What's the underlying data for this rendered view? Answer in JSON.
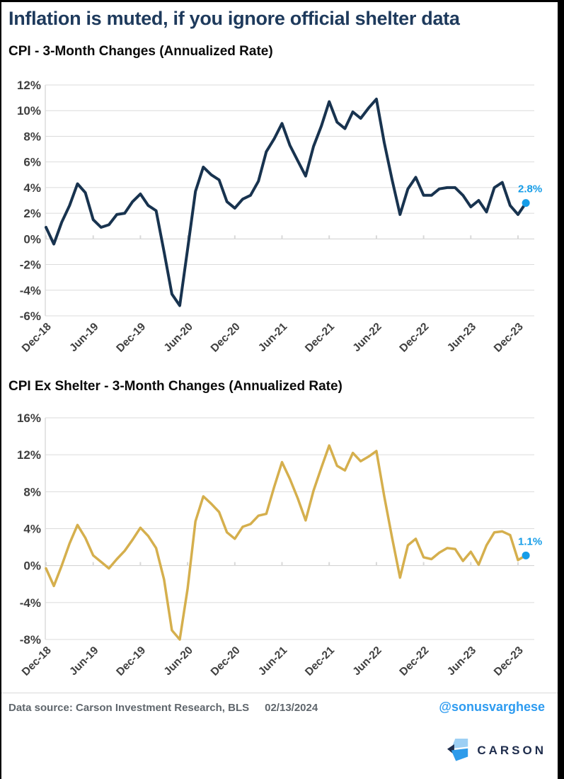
{
  "page": {
    "title": "Inflation is muted, if you ignore official shelter data",
    "footer": {
      "source": "Data source: Carson Investment Research, BLS",
      "date": "02/13/2024",
      "handle": "@sonusvarghese",
      "logo_text": "CARSON"
    },
    "colors": {
      "title_navy": "#1E3A5C",
      "accent_blue": "#169DE8",
      "handle_blue": "#2D9BF0",
      "navy_line": "#18334F",
      "gold_line": "#D5AF4D",
      "grid": "#DBDBDB",
      "zero_line": "#CFCFCF",
      "axis_text": "#3F3F3F",
      "footer_gray": "#5F666C",
      "logo_navy": "#1E2C4C",
      "logo_light_blue": "#9DCFF4",
      "logo_bright_blue": "#2E9BEA"
    }
  },
  "chart_data": [
    {
      "type": "line",
      "title": "CPI - 3-Month Changes (Annualized Rate)",
      "series_name": "CPI 3-month annualized change",
      "x": [
        "Dec-18",
        "Jan-19",
        "Feb-19",
        "Mar-19",
        "Apr-19",
        "May-19",
        "Jun-19",
        "Jul-19",
        "Aug-19",
        "Sep-19",
        "Oct-19",
        "Nov-19",
        "Dec-19",
        "Jan-20",
        "Feb-20",
        "Mar-20",
        "Apr-20",
        "May-20",
        "Jun-20",
        "Jul-20",
        "Aug-20",
        "Sep-20",
        "Oct-20",
        "Nov-20",
        "Dec-20",
        "Jan-21",
        "Feb-21",
        "Mar-21",
        "Apr-21",
        "May-21",
        "Jun-21",
        "Jul-21",
        "Aug-21",
        "Sep-21",
        "Oct-21",
        "Nov-21",
        "Dec-21",
        "Jan-22",
        "Feb-22",
        "Mar-22",
        "Apr-22",
        "May-22",
        "Jun-22",
        "Jul-22",
        "Aug-22",
        "Sep-22",
        "Oct-22",
        "Nov-22",
        "Dec-22",
        "Jan-23",
        "Feb-23",
        "Mar-23",
        "Apr-23",
        "May-23",
        "Jun-23",
        "Jul-23",
        "Aug-23",
        "Sep-23",
        "Oct-23",
        "Nov-23",
        "Dec-23",
        "Jan-24"
      ],
      "values": [
        0.9,
        -0.4,
        1.3,
        2.6,
        4.3,
        3.6,
        1.5,
        0.9,
        1.1,
        1.9,
        2.0,
        2.9,
        3.5,
        2.6,
        2.2,
        -1.0,
        -4.3,
        -5.2,
        -0.8,
        3.7,
        5.6,
        5.0,
        4.6,
        2.9,
        2.4,
        3.1,
        3.4,
        4.5,
        6.8,
        7.8,
        9.0,
        7.3,
        6.1,
        4.9,
        7.2,
        8.8,
        10.7,
        9.1,
        8.6,
        9.9,
        9.4,
        10.2,
        10.9,
        7.5,
        4.6,
        1.9,
        3.9,
        4.8,
        3.4,
        3.4,
        3.9,
        4.0,
        4.0,
        3.4,
        2.5,
        3.0,
        2.1,
        4.0,
        4.4,
        2.6,
        1.9,
        2.8
      ],
      "x_tick_labels": [
        "Dec-18",
        "Jun-19",
        "Dec-19",
        "Jun-20",
        "Dec-20",
        "Jun-21",
        "Dec-21",
        "Jun-22",
        "Dec-22",
        "Jun-23",
        "Dec-23"
      ],
      "y_tick_labels": [
        "12%",
        "10%",
        "8%",
        "6%",
        "4%",
        "2%",
        "0%",
        "-2%",
        "-4%",
        "-6%"
      ],
      "ylim": [
        -6,
        12
      ],
      "ytick_step": 2,
      "xlabel": "",
      "ylabel": "",
      "grid": true,
      "legend": null,
      "end_label": "2.8%",
      "line_color": "#18334F",
      "line_width": 4
    },
    {
      "type": "line",
      "title": "CPI Ex Shelter - 3-Month Changes (Annualized Rate)",
      "series_name": "CPI ex shelter 3-month annualized change",
      "x": [
        "Dec-18",
        "Jan-19",
        "Feb-19",
        "Mar-19",
        "Apr-19",
        "May-19",
        "Jun-19",
        "Jul-19",
        "Aug-19",
        "Sep-19",
        "Oct-19",
        "Nov-19",
        "Dec-19",
        "Jan-20",
        "Feb-20",
        "Mar-20",
        "Apr-20",
        "May-20",
        "Jun-20",
        "Jul-20",
        "Aug-20",
        "Sep-20",
        "Oct-20",
        "Nov-20",
        "Dec-20",
        "Jan-21",
        "Feb-21",
        "Mar-21",
        "Apr-21",
        "May-21",
        "Jun-21",
        "Jul-21",
        "Aug-21",
        "Sep-21",
        "Oct-21",
        "Nov-21",
        "Dec-21",
        "Jan-22",
        "Feb-22",
        "Mar-22",
        "Apr-22",
        "May-22",
        "Jun-22",
        "Jul-22",
        "Aug-22",
        "Sep-22",
        "Oct-22",
        "Nov-22",
        "Dec-22",
        "Jan-23",
        "Feb-23",
        "Mar-23",
        "Apr-23",
        "May-23",
        "Jun-23",
        "Jul-23",
        "Aug-23",
        "Sep-23",
        "Oct-23",
        "Nov-23",
        "Dec-23",
        "Jan-24"
      ],
      "values": [
        -0.3,
        -2.2,
        0.0,
        2.4,
        4.4,
        3.0,
        1.1,
        0.4,
        -0.3,
        0.7,
        1.6,
        2.8,
        4.1,
        3.2,
        1.9,
        -1.5,
        -7.0,
        -8.0,
        -2.5,
        4.8,
        7.5,
        6.7,
        5.8,
        3.6,
        2.9,
        4.2,
        4.5,
        5.4,
        5.6,
        8.5,
        11.2,
        9.4,
        7.3,
        4.9,
        8.1,
        10.6,
        13.0,
        10.8,
        10.3,
        12.2,
        11.3,
        11.8,
        12.4,
        7.5,
        3.0,
        -1.3,
        2.2,
        2.9,
        0.9,
        0.7,
        1.4,
        1.9,
        1.8,
        0.5,
        1.5,
        0.1,
        2.2,
        3.6,
        3.7,
        3.3,
        0.6,
        1.1
      ],
      "x_tick_labels": [
        "Dec-18",
        "Jun-19",
        "Dec-19",
        "Jun-20",
        "Dec-20",
        "Jun-21",
        "Dec-21",
        "Jun-22",
        "Dec-22",
        "Jun-23",
        "Dec-23"
      ],
      "y_tick_labels": [
        "16%",
        "12%",
        "8%",
        "4%",
        "0%",
        "-4%",
        "-8%"
      ],
      "ylim": [
        -8,
        16
      ],
      "ytick_step": 4,
      "xlabel": "",
      "ylabel": "",
      "grid": true,
      "legend": null,
      "end_label": "1.1%",
      "line_color": "#D5AF4D",
      "line_width": 3.5
    }
  ]
}
